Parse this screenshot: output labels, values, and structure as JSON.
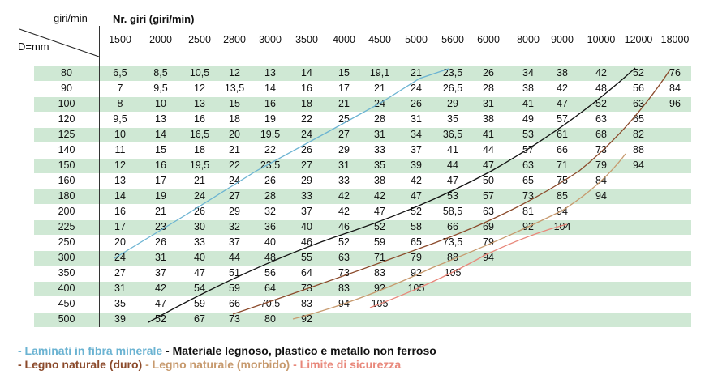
{
  "header": {
    "corner_top": "giri/min",
    "corner_bottom": "D=mm",
    "rpm_title": "Nr. giri (giri/min)"
  },
  "rpm": [
    "1500",
    "2000",
    "2500",
    "2800",
    "3000",
    "3500",
    "4000",
    "4500",
    "5000",
    "5600",
    "6000",
    "8000",
    "9000",
    "10000",
    "12000",
    "18000"
  ],
  "rows": [
    {
      "d": "80",
      "v": [
        "6,5",
        "8,5",
        "10,5",
        "12",
        "13",
        "14",
        "15",
        "19,1",
        "21",
        "23,5",
        "26",
        "34",
        "38",
        "42",
        "52",
        "76"
      ]
    },
    {
      "d": "90",
      "v": [
        "7",
        "9,5",
        "12",
        "13,5",
        "14",
        "16",
        "17",
        "21",
        "24",
        "26,5",
        "28",
        "38",
        "42",
        "48",
        "56",
        "84"
      ]
    },
    {
      "d": "100",
      "v": [
        "8",
        "10",
        "13",
        "15",
        "16",
        "18",
        "21",
        "24",
        "26",
        "29",
        "31",
        "41",
        "47",
        "52",
        "63",
        "96"
      ]
    },
    {
      "d": "120",
      "v": [
        "9,5",
        "13",
        "16",
        "18",
        "19",
        "22",
        "25",
        "28",
        "31",
        "35",
        "38",
        "49",
        "57",
        "63",
        "65",
        ""
      ]
    },
    {
      "d": "125",
      "v": [
        "10",
        "14",
        "16,5",
        "20",
        "19,5",
        "24",
        "27",
        "31",
        "34",
        "36,5",
        "41",
        "53",
        "61",
        "68",
        "82",
        ""
      ]
    },
    {
      "d": "140",
      "v": [
        "11",
        "15",
        "18",
        "21",
        "22",
        "26",
        "29",
        "33",
        "37",
        "41",
        "44",
        "57",
        "66",
        "73",
        "88",
        ""
      ]
    },
    {
      "d": "150",
      "v": [
        "12",
        "16",
        "19,5",
        "22",
        "23,5",
        "27",
        "31",
        "35",
        "39",
        "44",
        "47",
        "63",
        "71",
        "79",
        "94",
        ""
      ]
    },
    {
      "d": "160",
      "v": [
        "13",
        "17",
        "21",
        "24",
        "26",
        "29",
        "33",
        "38",
        "42",
        "47",
        "50",
        "65",
        "75",
        "84",
        "",
        ""
      ]
    },
    {
      "d": "180",
      "v": [
        "14",
        "19",
        "24",
        "27",
        "28",
        "33",
        "42",
        "42",
        "47",
        "53",
        "57",
        "73",
        "85",
        "94",
        "",
        ""
      ]
    },
    {
      "d": "200",
      "v": [
        "16",
        "21",
        "26",
        "29",
        "32",
        "37",
        "42",
        "47",
        "52",
        "58,5",
        "63",
        "81",
        "94",
        "",
        "",
        ""
      ]
    },
    {
      "d": "225",
      "v": [
        "17",
        "23",
        "30",
        "32",
        "36",
        "40",
        "46",
        "52",
        "58",
        "66",
        "69",
        "92",
        "104",
        "",
        "",
        ""
      ]
    },
    {
      "d": "250",
      "v": [
        "20",
        "26",
        "33",
        "37",
        "40",
        "46",
        "52",
        "59",
        "65",
        "73,5",
        "79",
        "",
        "",
        "",
        "",
        ""
      ]
    },
    {
      "d": "300",
      "v": [
        "24",
        "31",
        "40",
        "44",
        "48",
        "55",
        "63",
        "71",
        "79",
        "88",
        "94",
        "",
        "",
        "",
        "",
        ""
      ]
    },
    {
      "d": "350",
      "v": [
        "27",
        "37",
        "47",
        "51",
        "56",
        "64",
        "73",
        "83",
        "92",
        "105",
        "",
        "",
        "",
        "",
        "",
        ""
      ]
    },
    {
      "d": "400",
      "v": [
        "31",
        "42",
        "54",
        "59",
        "64",
        "73",
        "83",
        "92",
        "105",
        "",
        "",
        "",
        "",
        "",
        "",
        ""
      ]
    },
    {
      "d": "450",
      "v": [
        "35",
        "47",
        "59",
        "66",
        "70,5",
        "83",
        "94",
        "105",
        "",
        "",
        "",
        "",
        "",
        "",
        "",
        ""
      ]
    },
    {
      "d": "500",
      "v": [
        "39",
        "52",
        "67",
        "73",
        "80",
        "92",
        "",
        "",
        "",
        "",
        "",
        "",
        "",
        "",
        "",
        ""
      ]
    }
  ],
  "legend": {
    "item1": "- Laminati in fibra minerale",
    "item2": " - Materiale legnoso, plastico e metallo non ferroso",
    "item3": "- Legno naturale (duro)",
    "item4": " - Legno naturale (morbido)",
    "item5": "  - Limite di sicurezza"
  },
  "colors": {
    "band": "#cfe8d4",
    "laminati": "#6bb3d2",
    "materiale": "#111111",
    "duro": "#8b4a2b",
    "morbido": "#c79a6e",
    "limite": "#e8877a"
  }
}
